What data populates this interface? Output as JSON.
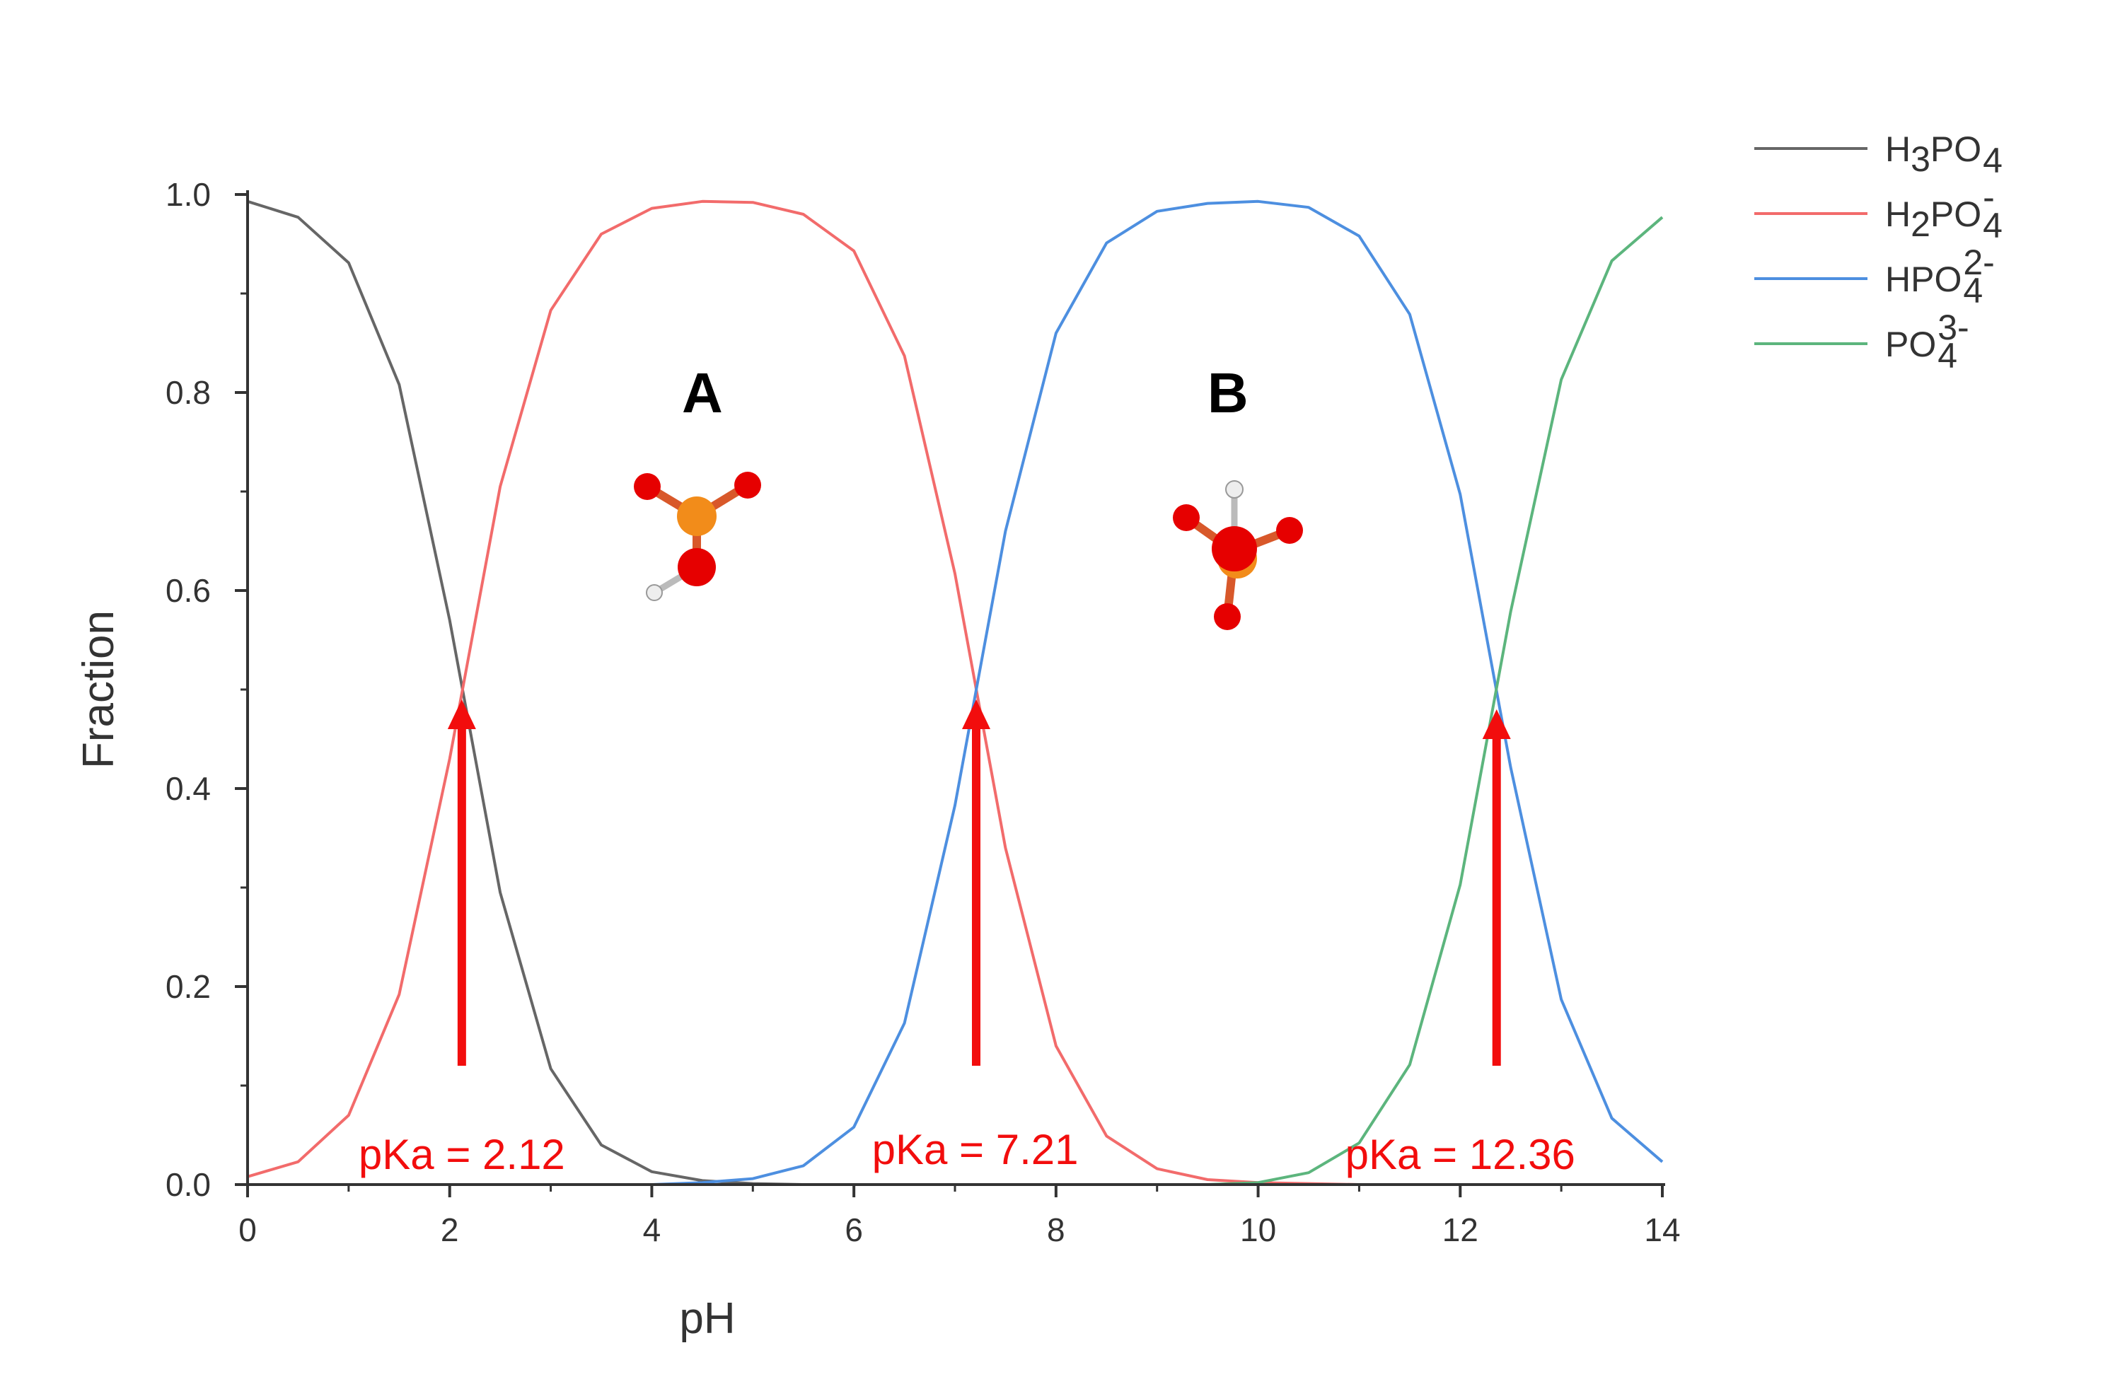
{
  "chart_data": {
    "type": "line",
    "title": "",
    "xlabel": "pH",
    "ylabel": "Fraction",
    "xlim": [
      0,
      14
    ],
    "ylim": [
      0,
      1
    ],
    "xticks": [
      "0",
      "2",
      "4",
      "6",
      "8",
      "10",
      "12",
      "14"
    ],
    "yticks": [
      "0.0",
      "0.2",
      "0.4",
      "0.6",
      "0.8",
      "1.0"
    ],
    "grid": false,
    "legend_position": "top-right",
    "x": [
      0,
      0.5,
      1,
      1.5,
      2,
      2.5,
      3,
      3.5,
      4,
      4.5,
      5,
      5.5,
      6,
      6.5,
      7,
      7.5,
      8,
      8.5,
      9,
      9.5,
      10,
      10.5,
      11,
      11.5,
      12,
      12.5,
      13,
      13.5,
      14
    ],
    "series": [
      {
        "name": "H3PO4",
        "legend": {
          "base": "H",
          "sub1": "3",
          "mid": "PO",
          "sup": "",
          "sub2": "4"
        },
        "color": "#666666",
        "values": [
          0.993,
          0.977,
          0.931,
          0.808,
          0.57,
          0.295,
          0.117,
          0.04,
          0.013,
          0.004,
          0.001,
          0,
          0,
          0,
          0,
          0,
          0,
          0,
          0,
          0,
          0,
          0,
          0,
          0,
          0,
          0,
          0,
          0,
          0
        ]
      },
      {
        "name": "H2PO4-",
        "legend": {
          "base": "H",
          "sub1": "2",
          "mid": "PO",
          "sup": "-",
          "sub2": "4"
        },
        "color": "#f26b6b",
        "values": [
          0.008,
          0.023,
          0.07,
          0.192,
          0.43,
          0.705,
          0.883,
          0.96,
          0.986,
          0.993,
          0.992,
          0.98,
          0.943,
          0.837,
          0.617,
          0.34,
          0.14,
          0.049,
          0.016,
          0.005,
          0.002,
          0.001,
          0,
          0,
          0,
          0,
          0,
          0,
          0
        ]
      },
      {
        "name": "HPO4 2-",
        "legend": {
          "base": "HPO",
          "sub1": "",
          "mid": "",
          "sup": "2-",
          "sub2": "4"
        },
        "color": "#4d8fe0",
        "values": [
          0,
          0,
          0,
          0,
          0,
          0,
          0,
          0,
          0,
          0.002,
          0.006,
          0.019,
          0.058,
          0.163,
          0.383,
          0.66,
          0.86,
          0.951,
          0.983,
          0.991,
          0.993,
          0.987,
          0.958,
          0.879,
          0.697,
          0.421,
          0.187,
          0.067,
          0.023
        ]
      },
      {
        "name": "PO4 3-",
        "legend": {
          "base": "PO",
          "sub1": "",
          "mid": "",
          "sup": "3-",
          "sub2": "4"
        },
        "color": "#5cb57d",
        "values": [
          0,
          0,
          0,
          0,
          0,
          0,
          0,
          0,
          0,
          0,
          0,
          0,
          0,
          0,
          0,
          0,
          0,
          0,
          0,
          0,
          0.002,
          0.012,
          0.042,
          0.121,
          0.303,
          0.579,
          0.813,
          0.933,
          0.977
        ]
      }
    ],
    "annotations": [
      {
        "label": "pKa = 2.12",
        "x": 2.12,
        "y_from": 0.12,
        "y_to": 0.49,
        "label_x": 2.12,
        "label_y": 0.03
      },
      {
        "label": "pKa = 7.21",
        "x": 7.21,
        "y_from": 0.12,
        "y_to": 0.49,
        "label_x": 7.2,
        "label_y": 0.035
      },
      {
        "label": "pKa = 12.36",
        "x": 12.36,
        "y_from": 0.12,
        "y_to": 0.48,
        "label_x": 12.0,
        "label_y": 0.03
      }
    ],
    "region_labels": [
      {
        "label": "A",
        "x": 4.5,
        "y": 0.78
      },
      {
        "label": "B",
        "x": 9.7,
        "y": 0.78
      }
    ],
    "arrow_color": "#f20d0d"
  }
}
